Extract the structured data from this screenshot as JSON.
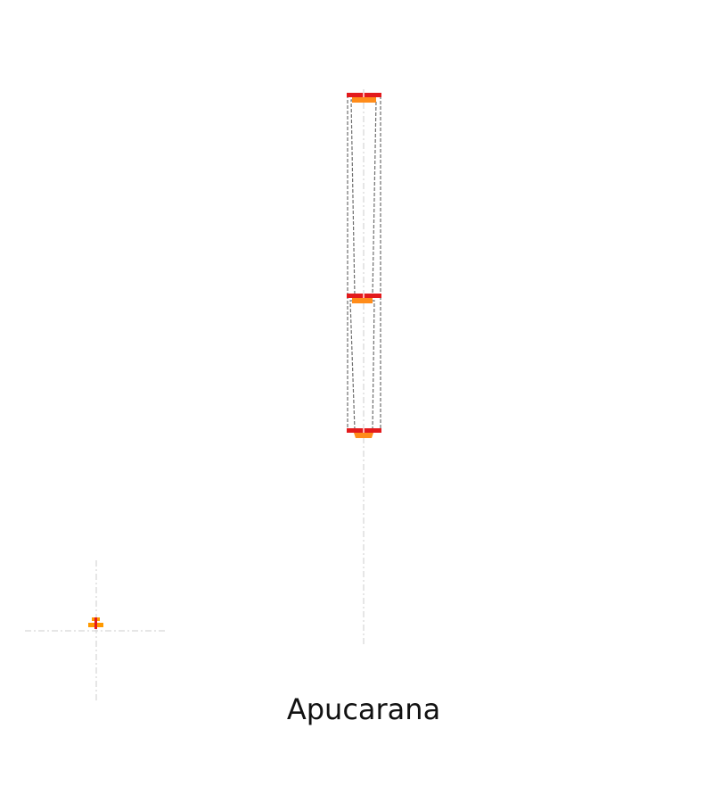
{
  "caption": "Apucarana",
  "colors": {
    "background": "#ffffff",
    "guide": "#d6d6d6",
    "outline": "#6e6e6e",
    "cap_primary": "#e31a1c",
    "cap_secondary": "#ff8c1a",
    "marker": "#ff9900"
  }
}
